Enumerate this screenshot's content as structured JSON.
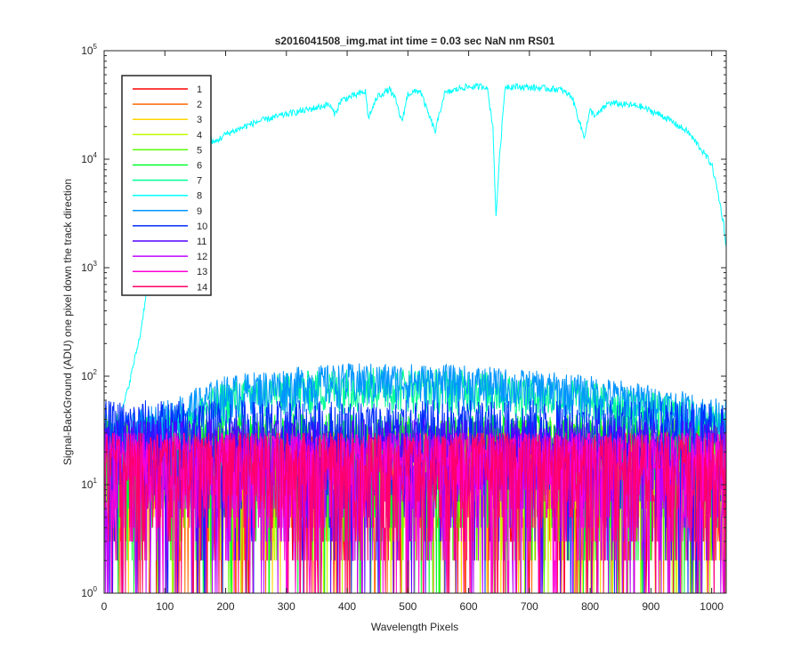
{
  "chart_data": {
    "type": "line",
    "title": "s2016041508_img.mat int time = 0.03 sec  NaN nm RS01",
    "xlabel": "Wavelength Pixels",
    "ylabel": "Signal-BackGround (ADU) one pixel down the track direction",
    "xlim": [
      0,
      1024
    ],
    "ylim": [
      1,
      100000
    ],
    "yscale": "log",
    "x_ticks": [
      0,
      100,
      200,
      300,
      400,
      500,
      600,
      700,
      800,
      900,
      1000
    ],
    "y_ticks": [
      {
        "value": 1,
        "base": "10",
        "exp": "0"
      },
      {
        "value": 10,
        "base": "10",
        "exp": "1"
      },
      {
        "value": 100,
        "base": "10",
        "exp": "2"
      },
      {
        "value": 1000,
        "base": "10",
        "exp": "3"
      },
      {
        "value": 10000,
        "base": "10",
        "exp": "4"
      },
      {
        "value": 100000,
        "base": "10",
        "exp": "5"
      }
    ],
    "grid": false,
    "legend_position": "top-left",
    "series": [
      {
        "name": "1",
        "color": "#ff0000",
        "level": "noise",
        "max": 30
      },
      {
        "name": "2",
        "color": "#ff6a00",
        "level": "noise",
        "max": 30
      },
      {
        "name": "3",
        "color": "#ffd500",
        "level": "noise",
        "max": 30
      },
      {
        "name": "4",
        "color": "#bfff00",
        "level": "noise",
        "max": 35
      },
      {
        "name": "5",
        "color": "#55ff00",
        "level": "noise",
        "max": 40
      },
      {
        "name": "6",
        "color": "#00ff2b",
        "level": "noise",
        "max": 45
      },
      {
        "name": "7",
        "color": "#00ff95",
        "level": "elevated",
        "points": [
          [
            0,
            25
          ],
          [
            100,
            40
          ],
          [
            200,
            75
          ],
          [
            300,
            90
          ],
          [
            400,
            100
          ],
          [
            500,
            100
          ],
          [
            600,
            95
          ],
          [
            700,
            85
          ],
          [
            800,
            75
          ],
          [
            900,
            60
          ],
          [
            1024,
            45
          ]
        ]
      },
      {
        "name": "8",
        "color": "#00ffff",
        "level": "signal",
        "points": [
          [
            0,
            30
          ],
          [
            20,
            30
          ],
          [
            40,
            80
          ],
          [
            60,
            250
          ],
          [
            75,
            1000
          ],
          [
            85,
            4000
          ],
          [
            100,
            9000
          ],
          [
            130,
            13000
          ],
          [
            160,
            15000
          ],
          [
            175,
            16000
          ],
          [
            180,
            14000
          ],
          [
            200,
            17000
          ],
          [
            250,
            22000
          ],
          [
            300,
            26000
          ],
          [
            340,
            29000
          ],
          [
            370,
            32000
          ],
          [
            380,
            26000
          ],
          [
            390,
            35000
          ],
          [
            420,
            40000
          ],
          [
            430,
            42000
          ],
          [
            435,
            24000
          ],
          [
            450,
            38000
          ],
          [
            470,
            44000
          ],
          [
            480,
            35000
          ],
          [
            490,
            22000
          ],
          [
            500,
            40000
          ],
          [
            520,
            43000
          ],
          [
            535,
            25000
          ],
          [
            545,
            18000
          ],
          [
            560,
            40000
          ],
          [
            590,
            46000
          ],
          [
            630,
            47000
          ],
          [
            640,
            20000
          ],
          [
            645,
            2800
          ],
          [
            650,
            9000
          ],
          [
            660,
            47000
          ],
          [
            700,
            46000
          ],
          [
            750,
            44000
          ],
          [
            770,
            38000
          ],
          [
            790,
            16000
          ],
          [
            800,
            28000
          ],
          [
            810,
            25000
          ],
          [
            830,
            33000
          ],
          [
            880,
            31000
          ],
          [
            920,
            25000
          ],
          [
            960,
            18000
          ],
          [
            980,
            13000
          ],
          [
            1000,
            9000
          ],
          [
            1010,
            5000
          ],
          [
            1020,
            2500
          ],
          [
            1024,
            1500
          ]
        ]
      },
      {
        "name": "9",
        "color": "#0095ff",
        "level": "elevated",
        "points": [
          [
            0,
            30
          ],
          [
            100,
            50
          ],
          [
            200,
            85
          ],
          [
            300,
            100
          ],
          [
            400,
            110
          ],
          [
            500,
            110
          ],
          [
            600,
            105
          ],
          [
            700,
            95
          ],
          [
            800,
            85
          ],
          [
            900,
            70
          ],
          [
            1024,
            50
          ]
        ]
      },
      {
        "name": "10",
        "color": "#002bff",
        "level": "noise",
        "max": 60
      },
      {
        "name": "11",
        "color": "#5500ff",
        "level": "noise",
        "max": 40
      },
      {
        "name": "12",
        "color": "#bf00ff",
        "level": "noise",
        "max": 30
      },
      {
        "name": "13",
        "color": "#ff00d5",
        "level": "noise",
        "max": 30
      },
      {
        "name": "14",
        "color": "#ff006a",
        "level": "noise",
        "max": 30
      }
    ]
  }
}
